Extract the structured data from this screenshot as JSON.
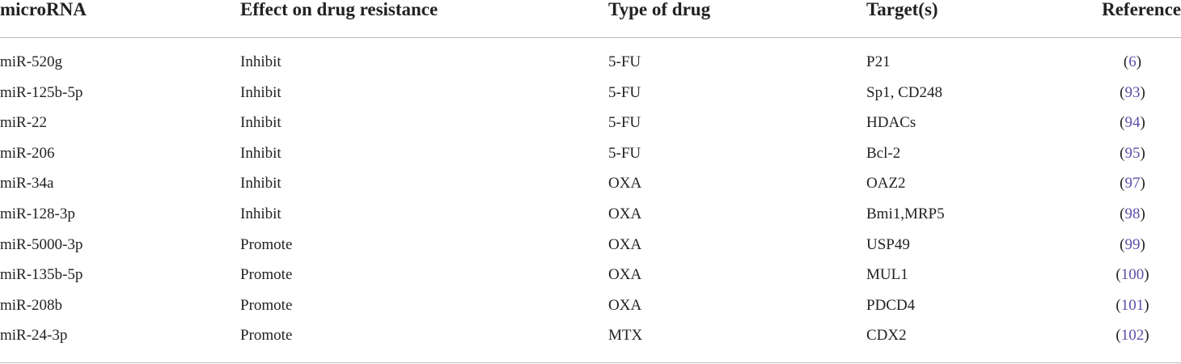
{
  "table": {
    "header": [
      "microRNA",
      "Effect on drug resistance",
      "Type of drug",
      "Target(s)",
      "Reference"
    ],
    "rows": [
      [
        "miR-520g",
        "Inhibit",
        "5-FU",
        "P21",
        "(6)"
      ],
      [
        "miR-125b-5p",
        "Inhibit",
        "5-FU",
        "Sp1, CD248",
        "(93)"
      ],
      [
        "miR-22",
        "Inhibit",
        "5-FU",
        "HDACs",
        "(94)"
      ],
      [
        "miR-206",
        "Inhibit",
        "5-FU",
        "Bcl-2",
        "(95)"
      ],
      [
        "miR-34a",
        "Inhibit",
        "OXA",
        "OAZ2",
        "(97)"
      ],
      [
        "miR-128-3p",
        "Inhibit",
        "OXA",
        "Bmi1,MRP5",
        "(98)"
      ],
      [
        "miR-5000-3p",
        "Promote",
        "OXA",
        "USP49",
        "(99)"
      ],
      [
        "miR-135b-5p",
        "Promote",
        "OXA",
        "MUL1",
        "(100)"
      ],
      [
        "miR-208b",
        "Promote",
        "OXA",
        "PDCD4",
        "(101)"
      ],
      [
        "miR-24-3p",
        "Promote",
        "MTX",
        "CDX2",
        "(102)"
      ]
    ]
  }
}
